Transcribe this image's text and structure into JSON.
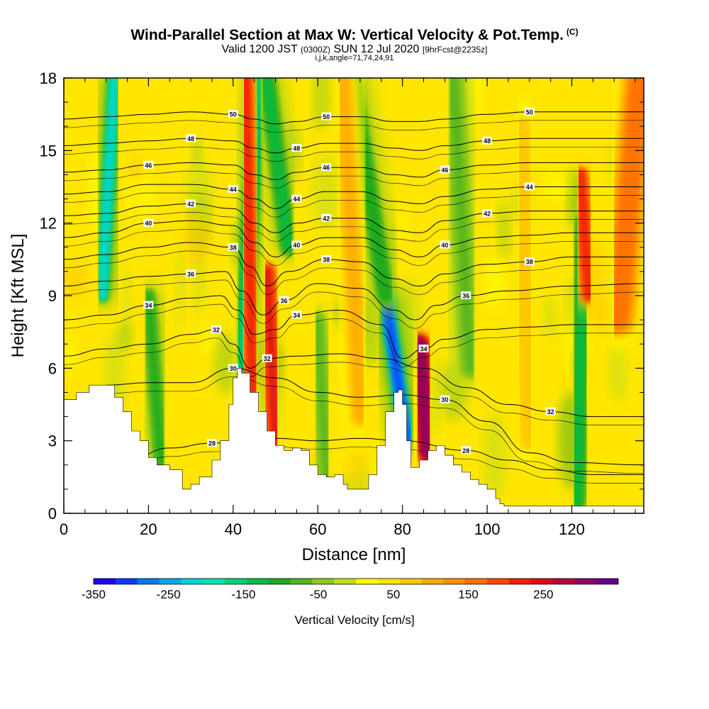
{
  "header": {
    "title": "Wind-Parallel Section at Max W: Vertical Velocity & Pot.Temp.",
    "copyright": "(C)",
    "subtitle_a": "Valid 1200 JST",
    "subtitle_b": "(0300Z)",
    "subtitle_c": "SUN 12 Jul 2020",
    "subtitle_d": "[9hrFcst@2235z]",
    "indices": "i,j,k,angle=71,74,24,91"
  },
  "chart_data": {
    "type": "heatmap",
    "xlabel": "Distance [nm]",
    "ylabel": "Height [Kft MSL]",
    "xlim": [
      0,
      137
    ],
    "ylim": [
      0,
      18
    ],
    "x_ticks": [
      0,
      20,
      40,
      60,
      80,
      100,
      120
    ],
    "y_ticks": [
      0,
      3,
      6,
      9,
      12,
      15,
      18
    ],
    "colorbar": {
      "label": "Vertical Velocity [cm/s]",
      "range": [
        -350,
        350
      ],
      "tick_values": [
        -350,
        -250,
        -150,
        -50,
        50,
        150,
        250
      ],
      "tick_labels": [
        "-350",
        "-250",
        "-150",
        "-50",
        "50",
        "150",
        "250"
      ],
      "colors": [
        "#1c00f0",
        "#0a3cff",
        "#0078f0",
        "#00a8e6",
        "#00d2dc",
        "#00e6b4",
        "#00d278",
        "#00be46",
        "#1eaa1e",
        "#50b41e",
        "#8cc81e",
        "#bedc1e",
        "#ffff00",
        "#ffe600",
        "#ffc800",
        "#ffaa00",
        "#ff8c00",
        "#ff6e00",
        "#ff4600",
        "#f01e00",
        "#dc0a14",
        "#b4003c",
        "#8c0064",
        "#64008c"
      ]
    },
    "terrain": [
      [
        0,
        4.7
      ],
      [
        2,
        4.7
      ],
      [
        3,
        5.0
      ],
      [
        6,
        5.3
      ],
      [
        10,
        5.3
      ],
      [
        12,
        4.8
      ],
      [
        14,
        4.2
      ],
      [
        16,
        3.4
      ],
      [
        18,
        3.0
      ],
      [
        20,
        2.3
      ],
      [
        22,
        2.0
      ],
      [
        25,
        1.8
      ],
      [
        28,
        1.0
      ],
      [
        30,
        1.2
      ],
      [
        32,
        1.5
      ],
      [
        35,
        2.2
      ],
      [
        37,
        3.0
      ],
      [
        39,
        4.5
      ],
      [
        40,
        5.6
      ],
      [
        41,
        6.0
      ],
      [
        42,
        5.8
      ],
      [
        44,
        5.0
      ],
      [
        46,
        4.2
      ],
      [
        48,
        3.4
      ],
      [
        50,
        2.8
      ],
      [
        52,
        2.6
      ],
      [
        54,
        2.7
      ],
      [
        56,
        2.6
      ],
      [
        58,
        2.0
      ],
      [
        60,
        1.6
      ],
      [
        62,
        1.5
      ],
      [
        64,
        1.6
      ],
      [
        66,
        1.2
      ],
      [
        67,
        1.0
      ],
      [
        70,
        1.0
      ],
      [
        72,
        1.6
      ],
      [
        74,
        2.8
      ],
      [
        76,
        4.2
      ],
      [
        78,
        5.0
      ],
      [
        79,
        5.1
      ],
      [
        80,
        4.5
      ],
      [
        81,
        3.0
      ],
      [
        82,
        1.9
      ],
      [
        84,
        2.2
      ],
      [
        86,
        2.6
      ],
      [
        88,
        2.8
      ],
      [
        90,
        2.4
      ],
      [
        92,
        2.0
      ],
      [
        94,
        1.7
      ],
      [
        96,
        1.4
      ],
      [
        98,
        1.2
      ],
      [
        100,
        1.0
      ],
      [
        102,
        0.6
      ],
      [
        103,
        0.4
      ],
      [
        104,
        0.3
      ],
      [
        137,
        0.3
      ]
    ],
    "updrafts": [
      {
        "name": "updraft-1",
        "x": [
          45,
          43
        ],
        "y": [
          1,
          18
        ],
        "w_cms": 220,
        "width_nm": 1.6
      },
      {
        "name": "updraft-2",
        "x": [
          50,
          48
        ],
        "y": [
          3,
          10
        ],
        "w_cms": 240,
        "width_nm": 1.8
      },
      {
        "name": "updraft-3",
        "x": [
          86,
          84
        ],
        "y": [
          2.5,
          7
        ],
        "w_cms": 320,
        "width_nm": 2.2
      },
      {
        "name": "updraft-4",
        "x": [
          124,
          122
        ],
        "y": [
          9,
          14
        ],
        "w_cms": 230,
        "width_nm": 1.6
      },
      {
        "name": "updraft-5",
        "x": [
          131,
          136
        ],
        "y": [
          8,
          18
        ],
        "w_cms": 150,
        "width_nm": 3.5
      },
      {
        "name": "updraft-6",
        "x": [
          70,
          66
        ],
        "y": [
          4,
          18
        ],
        "w_cms": 90,
        "width_nm": 2.2
      },
      {
        "name": "updraft-7",
        "x": [
          110,
          108
        ],
        "y": [
          3,
          16
        ],
        "w_cms": 80,
        "width_nm": 2.5
      }
    ],
    "downdrafts": [
      {
        "name": "downdraft-1",
        "x": [
          9,
          12
        ],
        "y": [
          9,
          18
        ],
        "w_cms": -230,
        "width_nm": 1.2
      },
      {
        "name": "downdraft-2",
        "x": [
          42,
          46
        ],
        "y": [
          6,
          18
        ],
        "w_cms": -160,
        "width_nm": 1.6
      },
      {
        "name": "downdraft-3",
        "x": [
          53,
          48
        ],
        "y": [
          11,
          18
        ],
        "w_cms": -120,
        "width_nm": 1.6
      },
      {
        "name": "downdraft-4",
        "x": [
          81,
          76
        ],
        "y": [
          3,
          9
        ],
        "w_cms": -320,
        "width_nm": 1.4
      },
      {
        "name": "downdraft-5",
        "x": [
          76,
          68
        ],
        "y": [
          9,
          18
        ],
        "w_cms": -110,
        "width_nm": 1.8
      },
      {
        "name": "downdraft-6",
        "x": [
          23,
          20
        ],
        "y": [
          2,
          9
        ],
        "w_cms": -90,
        "width_nm": 1.4
      },
      {
        "name": "downdraft-7",
        "x": [
          121,
          123
        ],
        "y": [
          0.5,
          12
        ],
        "w_cms": -120,
        "width_nm": 1.8
      },
      {
        "name": "downdraft-8",
        "x": [
          96,
          92
        ],
        "y": [
          6,
          18
        ],
        "w_cms": -70,
        "width_nm": 2.0
      },
      {
        "name": "downdraft-9",
        "x": [
          62,
          60
        ],
        "y": [
          1.5,
          8
        ],
        "w_cms": -60,
        "width_nm": 1.5
      }
    ],
    "isentropes": [
      {
        "label": "28",
        "pts": [
          [
            15,
            2.2
          ],
          [
            25,
            2.7
          ],
          [
            35,
            2.9
          ],
          [
            50,
            3.1
          ],
          [
            60,
            3.0
          ],
          [
            70,
            3.1
          ],
          [
            80,
            3.0
          ],
          [
            95,
            2.6
          ],
          [
            105,
            2.2
          ],
          [
            115,
            1.8
          ],
          [
            125,
            1.6
          ],
          [
            137,
            1.6
          ]
        ]
      },
      {
        "label": "30",
        "pts": [
          [
            10,
            5.3
          ],
          [
            20,
            5.4
          ],
          [
            30,
            5.4
          ],
          [
            40,
            6.0
          ],
          [
            50,
            5.6
          ],
          [
            60,
            5.0
          ],
          [
            70,
            4.8
          ],
          [
            80,
            4.9
          ],
          [
            90,
            4.7
          ],
          [
            100,
            3.8
          ],
          [
            110,
            2.5
          ],
          [
            120,
            2.1
          ],
          [
            137,
            2.0
          ]
        ]
      },
      {
        "label": "32",
        "pts": [
          [
            0,
            6.5
          ],
          [
            10,
            6.8
          ],
          [
            20,
            7.0
          ],
          [
            30,
            7.4
          ],
          [
            36,
            7.6
          ],
          [
            40,
            7.0
          ],
          [
            44,
            6.0
          ],
          [
            48,
            6.4
          ],
          [
            55,
            6.5
          ],
          [
            65,
            6.6
          ],
          [
            75,
            6.4
          ],
          [
            85,
            6.0
          ],
          [
            95,
            5.2
          ],
          [
            105,
            4.5
          ],
          [
            115,
            4.2
          ],
          [
            125,
            4.0
          ],
          [
            137,
            4.0
          ]
        ]
      },
      {
        "label": "34",
        "pts": [
          [
            0,
            8.0
          ],
          [
            10,
            8.2
          ],
          [
            20,
            8.6
          ],
          [
            30,
            8.9
          ],
          [
            37,
            9.0
          ],
          [
            41,
            8.4
          ],
          [
            45,
            7.4
          ],
          [
            50,
            7.6
          ],
          [
            55,
            8.2
          ],
          [
            65,
            8.4
          ],
          [
            75,
            7.8
          ],
          [
            80,
            6.4
          ],
          [
            85,
            6.8
          ],
          [
            90,
            7.2
          ],
          [
            100,
            7.6
          ],
          [
            110,
            7.7
          ],
          [
            120,
            7.8
          ],
          [
            137,
            7.8
          ]
        ]
      },
      {
        "label": "36",
        "pts": [
          [
            0,
            9.4
          ],
          [
            10,
            9.6
          ],
          [
            20,
            9.8
          ],
          [
            30,
            9.9
          ],
          [
            38,
            10.0
          ],
          [
            42,
            9.2
          ],
          [
            47,
            8.2
          ],
          [
            52,
            8.8
          ],
          [
            60,
            9.5
          ],
          [
            70,
            9.3
          ],
          [
            78,
            8.4
          ],
          [
            83,
            8.0
          ],
          [
            88,
            8.6
          ],
          [
            95,
            9.0
          ],
          [
            105,
            9.2
          ],
          [
            120,
            9.4
          ],
          [
            137,
            9.5
          ]
        ]
      },
      {
        "label": "38",
        "pts": [
          [
            0,
            10.5
          ],
          [
            10,
            10.7
          ],
          [
            20,
            11.0
          ],
          [
            30,
            11.2
          ],
          [
            40,
            11.0
          ],
          [
            44,
            10.2
          ],
          [
            48,
            9.4
          ],
          [
            53,
            10.0
          ],
          [
            62,
            10.5
          ],
          [
            70,
            10.4
          ],
          [
            78,
            9.7
          ],
          [
            84,
            9.4
          ],
          [
            90,
            9.9
          ],
          [
            100,
            10.3
          ],
          [
            110,
            10.4
          ],
          [
            120,
            10.6
          ],
          [
            137,
            10.6
          ]
        ]
      },
      {
        "label": "40",
        "pts": [
          [
            0,
            11.4
          ],
          [
            10,
            11.6
          ],
          [
            20,
            12.0
          ],
          [
            30,
            12.1
          ],
          [
            40,
            11.9
          ],
          [
            45,
            11.2
          ],
          [
            50,
            10.6
          ],
          [
            55,
            11.1
          ],
          [
            62,
            11.4
          ],
          [
            70,
            11.4
          ],
          [
            78,
            10.9
          ],
          [
            84,
            10.6
          ],
          [
            90,
            11.1
          ],
          [
            100,
            11.4
          ],
          [
            110,
            11.5
          ],
          [
            120,
            11.6
          ],
          [
            137,
            11.6
          ]
        ]
      },
      {
        "label": "42",
        "pts": [
          [
            0,
            12.3
          ],
          [
            10,
            12.4
          ],
          [
            20,
            12.7
          ],
          [
            30,
            12.8
          ],
          [
            40,
            12.6
          ],
          [
            45,
            12.0
          ],
          [
            50,
            11.6
          ],
          [
            55,
            12.0
          ],
          [
            62,
            12.2
          ],
          [
            70,
            12.2
          ],
          [
            78,
            11.7
          ],
          [
            84,
            11.6
          ],
          [
            90,
            12.1
          ],
          [
            100,
            12.4
          ],
          [
            110,
            12.5
          ],
          [
            120,
            12.5
          ],
          [
            137,
            12.5
          ]
        ]
      },
      {
        "label": "44",
        "pts": [
          [
            0,
            13.2
          ],
          [
            10,
            13.3
          ],
          [
            20,
            13.6
          ],
          [
            30,
            13.6
          ],
          [
            40,
            13.4
          ],
          [
            45,
            13.0
          ],
          [
            50,
            12.6
          ],
          [
            55,
            13.0
          ],
          [
            62,
            13.3
          ],
          [
            70,
            13.3
          ],
          [
            78,
            12.9
          ],
          [
            84,
            12.8
          ],
          [
            90,
            13.1
          ],
          [
            100,
            13.4
          ],
          [
            110,
            13.5
          ],
          [
            120,
            13.5
          ],
          [
            137,
            13.5
          ]
        ]
      },
      {
        "label": "46",
        "pts": [
          [
            0,
            14.1
          ],
          [
            10,
            14.2
          ],
          [
            20,
            14.4
          ],
          [
            30,
            14.5
          ],
          [
            40,
            14.4
          ],
          [
            45,
            14.0
          ],
          [
            50,
            13.8
          ],
          [
            55,
            14.1
          ],
          [
            62,
            14.3
          ],
          [
            70,
            14.3
          ],
          [
            78,
            14.0
          ],
          [
            84,
            13.9
          ],
          [
            90,
            14.2
          ],
          [
            100,
            14.4
          ],
          [
            110,
            14.5
          ],
          [
            120,
            14.5
          ],
          [
            137,
            14.5
          ]
        ]
      },
      {
        "label": "48",
        "pts": [
          [
            0,
            15.2
          ],
          [
            10,
            15.3
          ],
          [
            20,
            15.4
          ],
          [
            30,
            15.5
          ],
          [
            40,
            15.4
          ],
          [
            45,
            15.1
          ],
          [
            50,
            14.9
          ],
          [
            55,
            15.1
          ],
          [
            62,
            15.3
          ],
          [
            70,
            15.3
          ],
          [
            78,
            15.1
          ],
          [
            84,
            15.0
          ],
          [
            90,
            15.2
          ],
          [
            100,
            15.4
          ],
          [
            110,
            15.5
          ],
          [
            120,
            15.5
          ],
          [
            137,
            15.5
          ]
        ]
      },
      {
        "label": "50",
        "pts": [
          [
            0,
            16.3
          ],
          [
            10,
            16.4
          ],
          [
            20,
            16.5
          ],
          [
            30,
            16.6
          ],
          [
            40,
            16.5
          ],
          [
            45,
            16.3
          ],
          [
            50,
            16.1
          ],
          [
            55,
            16.2
          ],
          [
            62,
            16.4
          ],
          [
            70,
            16.4
          ],
          [
            78,
            16.2
          ],
          [
            84,
            16.2
          ],
          [
            90,
            16.3
          ],
          [
            100,
            16.5
          ],
          [
            110,
            16.6
          ],
          [
            120,
            16.6
          ],
          [
            137,
            16.6
          ]
        ]
      }
    ]
  }
}
